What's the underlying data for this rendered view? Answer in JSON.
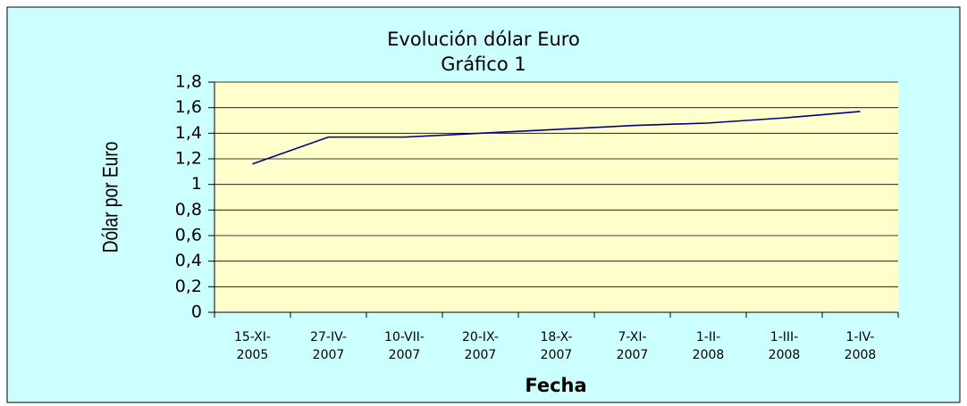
{
  "chart_data": {
    "type": "line",
    "title": "Evolución dólar Euro",
    "subtitle": "Gráfico 1",
    "x_label": "Fecha",
    "y_label": "Dólar por Euro",
    "categories": [
      "15-XI-2005",
      "27-IV-2007",
      "10-VII-2007",
      "20-IX-2007",
      "18-X-2007",
      "7-XI-2007",
      "1-II-2008",
      "1-III-2008",
      "1-IV-2008"
    ],
    "series": [
      {
        "name": "Dólar por Euro",
        "color": "#000080",
        "values": [
          1.16,
          1.37,
          1.37,
          1.4,
          1.43,
          1.46,
          1.48,
          1.52,
          1.57
        ]
      }
    ],
    "ylim": [
      0,
      1.8
    ],
    "yticks": [
      0,
      {
        "value": 0.2,
        "label": "0,2"
      },
      {
        "value": 0.4,
        "label": "0,4"
      },
      {
        "value": 0.6,
        "label": "0,6"
      },
      {
        "value": 0.8,
        "label": "0,8"
      },
      1,
      {
        "value": 1.2,
        "label": "1,2"
      },
      {
        "value": 1.4,
        "label": "1,4"
      },
      {
        "value": 1.6,
        "label": "1,6"
      },
      {
        "value": 1.8,
        "label": "1,8"
      }
    ],
    "grid": true
  }
}
